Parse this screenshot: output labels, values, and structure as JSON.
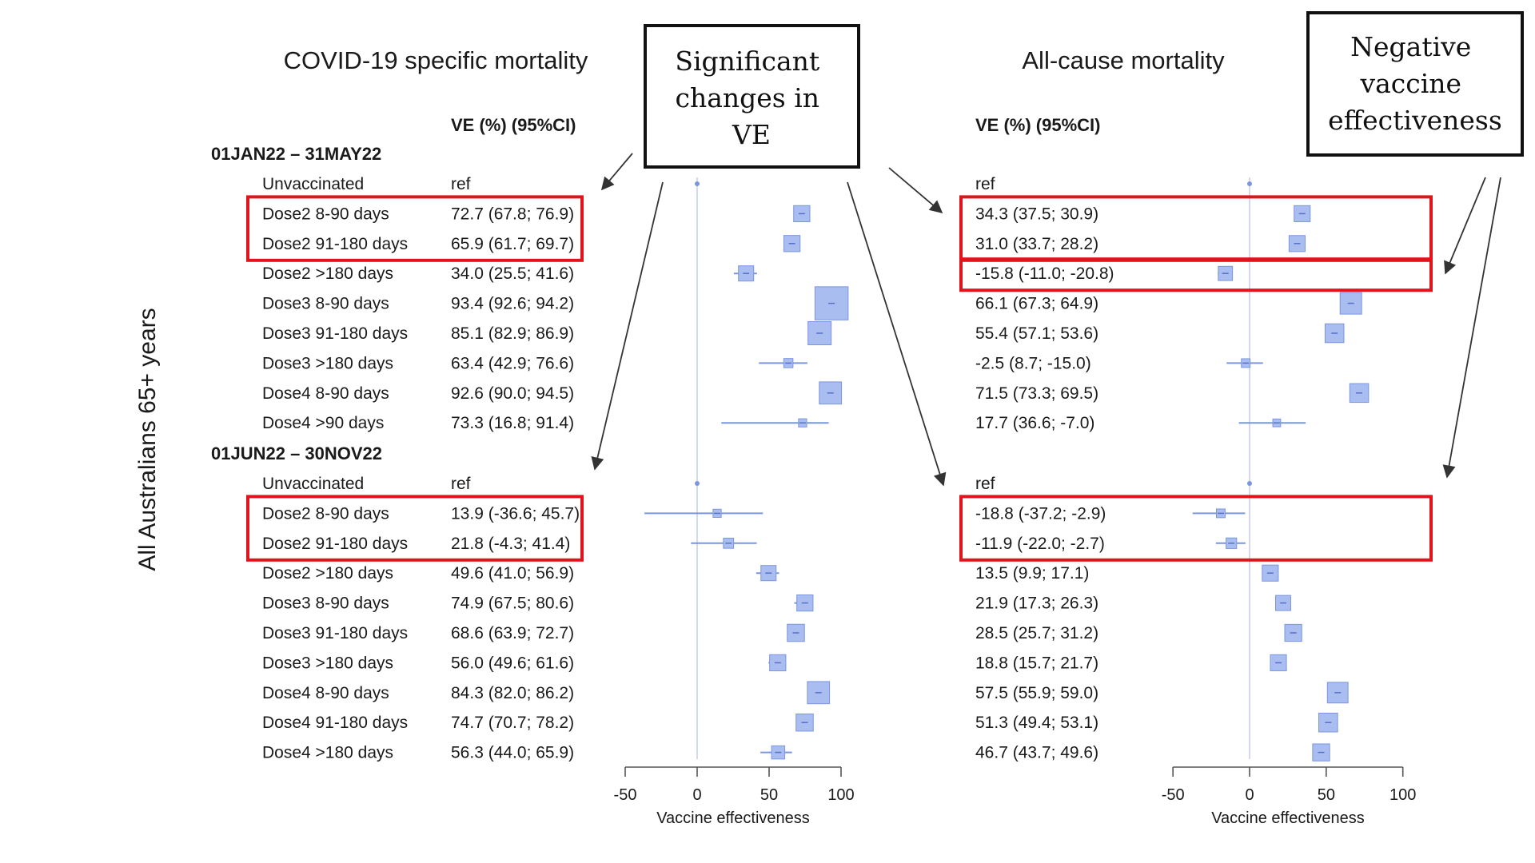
{
  "colors": {
    "marker": "#7b96e0",
    "marker_fill": "#a9bdf0",
    "zero_line": "#c8cee8",
    "highlight": "#e0141b",
    "callout_border": "#111111",
    "text": "#1a1a1a"
  },
  "y_axis_label": "All Australians 65+ years",
  "panels": {
    "covid": {
      "title": "COVID-19 specific mortality",
      "ve_header": "VE (%) (95%CI)",
      "xlabel": "Vaccine effectiveness"
    },
    "allcause": {
      "title": "All-cause mortality",
      "ve_header": "VE (%) (95%CI)",
      "xlabel": "Vaccine effectiveness"
    }
  },
  "callouts": {
    "significant": "Significant changes in VE",
    "negative": "Negative vaccine effectiveness"
  },
  "chart_data": [
    {
      "type": "forest",
      "title": "COVID-19 specific mortality",
      "xlabel": "Vaccine effectiveness",
      "xlim": [
        -50,
        100
      ],
      "xticks": [
        "-50",
        "0",
        "50",
        "100"
      ],
      "periods": [
        {
          "label": "01JAN22 – 31MAY22",
          "rows": [
            {
              "group": "Unvaccinated",
              "text": "ref",
              "ve": 0,
              "lo": 0,
              "hi": 0,
              "w": 0.6,
              "ref": true
            },
            {
              "group": "Dose2 8-90 days",
              "text": "72.7 (67.8; 76.9)",
              "ve": 72.7,
              "lo": 67.8,
              "hi": 76.9,
              "w": 1.3
            },
            {
              "group": "Dose2 91-180 days",
              "text": "65.9 (61.7; 69.7)",
              "ve": 65.9,
              "lo": 61.7,
              "hi": 69.7,
              "w": 1.3
            },
            {
              "group": "Dose2 >180 days",
              "text": "34.0 (25.5; 41.6)",
              "ve": 34.0,
              "lo": 25.5,
              "hi": 41.6,
              "w": 1.2
            },
            {
              "group": "Dose3 8-90 days",
              "text": "93.4 (92.6; 94.2)",
              "ve": 93.4,
              "lo": 92.6,
              "hi": 94.2,
              "w": 3.0
            },
            {
              "group": "Dose3 91-180 days",
              "text": "85.1 (82.9; 86.9)",
              "ve": 85.1,
              "lo": 82.9,
              "hi": 86.9,
              "w": 2.0
            },
            {
              "group": "Dose3 >180 days",
              "text": "63.4 (42.9; 76.6)",
              "ve": 63.4,
              "lo": 42.9,
              "hi": 76.6,
              "w": 0.6
            },
            {
              "group": "Dose4 8-90 days",
              "text": "92.6 (90.0; 94.5)",
              "ve": 92.6,
              "lo": 90.0,
              "hi": 94.5,
              "w": 1.9
            },
            {
              "group": "Dose4 >90 days",
              "text": "73.3 (16.8; 91.4)",
              "ve": 73.3,
              "lo": 16.8,
              "hi": 91.4,
              "w": 0.5
            }
          ]
        },
        {
          "label": "01JUN22 – 30NOV22",
          "rows": [
            {
              "group": "Unvaccinated",
              "text": "ref",
              "ve": 0,
              "lo": 0,
              "hi": 0,
              "w": 0.6,
              "ref": true
            },
            {
              "group": "Dose2 8-90 days",
              "text": "13.9 (-36.6; 45.7)",
              "ve": 13.9,
              "lo": -36.6,
              "hi": 45.7,
              "w": 0.5
            },
            {
              "group": "Dose2 91-180 days",
              "text": "21.8 (-4.3; 41.4)",
              "ve": 21.8,
              "lo": -4.3,
              "hi": 41.4,
              "w": 0.7
            },
            {
              "group": "Dose2 >180 days",
              "text": "49.6 (41.0; 56.9)",
              "ve": 49.6,
              "lo": 41.0,
              "hi": 56.9,
              "w": 1.2
            },
            {
              "group": "Dose3 8-90 days",
              "text": "74.9 (67.5; 80.6)",
              "ve": 74.9,
              "lo": 67.5,
              "hi": 80.6,
              "w": 1.3
            },
            {
              "group": "Dose3 91-180 days",
              "text": "68.6 (63.9; 72.7)",
              "ve": 68.6,
              "lo": 63.9,
              "hi": 72.7,
              "w": 1.4
            },
            {
              "group": "Dose3 >180 days",
              "text": "56.0 (49.6; 61.6)",
              "ve": 56.0,
              "lo": 49.6,
              "hi": 61.6,
              "w": 1.3
            },
            {
              "group": "Dose4 8-90 days",
              "text": "84.3 (82.0; 86.2)",
              "ve": 84.3,
              "lo": 82.0,
              "hi": 86.2,
              "w": 1.9
            },
            {
              "group": "Dose4 91-180 days",
              "text": "74.7 (70.7; 78.2)",
              "ve": 74.7,
              "lo": 70.7,
              "hi": 78.2,
              "w": 1.4
            },
            {
              "group": "Dose4 >180 days",
              "text": "56.3 (44.0; 65.9)",
              "ve": 56.3,
              "lo": 44.0,
              "hi": 65.9,
              "w": 1.0
            }
          ]
        }
      ]
    },
    {
      "type": "forest",
      "title": "All-cause mortality",
      "xlabel": "Vaccine effectiveness",
      "xlim": [
        -50,
        100
      ],
      "xticks": [
        "-50",
        "0",
        "50",
        "100"
      ],
      "periods": [
        {
          "label": "01JAN22 – 31MAY22",
          "rows": [
            {
              "group": "Unvaccinated",
              "text": "ref",
              "ve": 0,
              "lo": 0,
              "hi": 0,
              "w": 0.6,
              "ref": true
            },
            {
              "group": "Dose2 8-90 days",
              "text": "34.3 (37.5; 30.9)",
              "ve": 34.3,
              "lo": 30.9,
              "hi": 37.5,
              "w": 1.4
            },
            {
              "group": "Dose2 91-180 days",
              "text": "31.0 (33.7; 28.2)",
              "ve": 31.0,
              "lo": 28.2,
              "hi": 33.7,
              "w": 1.4
            },
            {
              "group": "Dose2 >180 days",
              "text": "-15.8 (-11.0; -20.8)",
              "ve": -15.8,
              "lo": -20.8,
              "hi": -11.0,
              "w": 1.2
            },
            {
              "group": "Dose3 8-90 days",
              "text": "66.1 (67.3; 64.9)",
              "ve": 66.1,
              "lo": 64.9,
              "hi": 67.3,
              "w": 2.0
            },
            {
              "group": "Dose3 91-180 days",
              "text": "55.4 (57.1; 53.6)",
              "ve": 55.4,
              "lo": 53.6,
              "hi": 57.1,
              "w": 1.7
            },
            {
              "group": "Dose3 >180 days",
              "text": "-2.5 (8.7; -15.0)",
              "ve": -2.5,
              "lo": -15.0,
              "hi": 8.7,
              "w": 0.6
            },
            {
              "group": "Dose4 8-90 days",
              "text": "71.5 (73.3; 69.5)",
              "ve": 71.5,
              "lo": 69.5,
              "hi": 73.3,
              "w": 1.7
            },
            {
              "group": "Dose4 >90 days",
              "text": "17.7 (36.6; -7.0)",
              "ve": 17.7,
              "lo": -7.0,
              "hi": 36.6,
              "w": 0.5
            }
          ]
        },
        {
          "label": "01JUN22 – 30NOV22",
          "rows": [
            {
              "group": "Unvaccinated",
              "text": "ref",
              "ve": 0,
              "lo": 0,
              "hi": 0,
              "w": 0.6,
              "ref": true
            },
            {
              "group": "Dose2 8-90 days",
              "text": "-18.8 (-37.2; -2.9)",
              "ve": -18.8,
              "lo": -37.2,
              "hi": -2.9,
              "w": 0.6
            },
            {
              "group": "Dose2 91-180 days",
              "text": "-11.9 (-22.0; -2.7)",
              "ve": -11.9,
              "lo": -22.0,
              "hi": -2.7,
              "w": 0.8
            },
            {
              "group": "Dose2 >180 days",
              "text": "13.5 (9.9; 17.1)",
              "ve": 13.5,
              "lo": 9.9,
              "hi": 17.1,
              "w": 1.4
            },
            {
              "group": "Dose3 8-90 days",
              "text": "21.9 (17.3; 26.3)",
              "ve": 21.9,
              "lo": 17.3,
              "hi": 26.3,
              "w": 1.3
            },
            {
              "group": "Dose3 91-180 days",
              "text": "28.5 (25.7; 31.2)",
              "ve": 28.5,
              "lo": 25.7,
              "hi": 31.2,
              "w": 1.5
            },
            {
              "group": "Dose3 >180 days",
              "text": "18.8 (15.7; 21.7)",
              "ve": 18.8,
              "lo": 15.7,
              "hi": 21.7,
              "w": 1.4
            },
            {
              "group": "Dose4 8-90 days",
              "text": "57.5 (55.9; 59.0)",
              "ve": 57.5,
              "lo": 55.9,
              "hi": 59.0,
              "w": 1.9
            },
            {
              "group": "Dose4 91-180 days",
              "text": "51.3 (49.4; 53.1)",
              "ve": 51.3,
              "lo": 49.4,
              "hi": 53.1,
              "w": 1.7
            },
            {
              "group": "Dose4 >180 days",
              "text": "46.7 (43.7; 49.6)",
              "ve": 46.7,
              "lo": 43.7,
              "hi": 49.6,
              "w": 1.5
            }
          ]
        }
      ]
    }
  ]
}
